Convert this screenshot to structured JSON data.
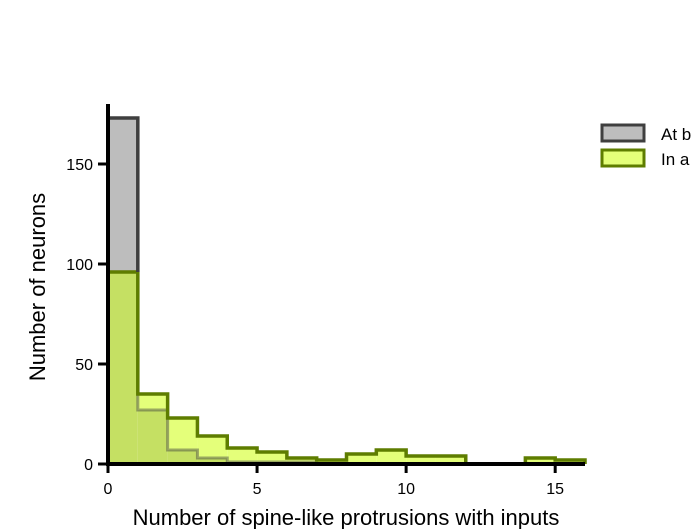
{
  "colors": {
    "series_a_fill": "#bdbdbd",
    "series_a_stroke": "#3f3f3f",
    "series_b_fill": "#e4ff7a",
    "series_b_stroke": "#5e7d00",
    "overlap_fill": "#c5e063",
    "axis": "#000000"
  },
  "chart_data": {
    "type": "histogram",
    "xlabel": "Number of spine-like protrusions with inputs",
    "ylabel": "Number of neurons",
    "xlim": [
      0,
      16
    ],
    "ylim": [
      0,
      180
    ],
    "xticks": [
      0,
      5,
      10,
      15
    ],
    "yticks": [
      0,
      50,
      100,
      150
    ],
    "bin_edges": [
      0,
      1,
      2,
      3,
      4,
      5,
      6,
      7,
      8,
      9,
      10,
      11,
      12,
      13,
      14,
      15,
      16
    ],
    "legend_position": "top-right",
    "series": [
      {
        "name": "At b",
        "values": [
          173,
          27,
          7,
          3,
          1,
          1,
          1,
          0,
          0,
          0,
          0,
          0,
          0,
          0,
          0,
          0
        ]
      },
      {
        "name": "In a",
        "values": [
          96,
          35,
          23,
          14,
          8,
          6,
          3,
          2,
          5,
          7,
          4,
          4,
          0,
          0,
          3,
          2
        ]
      }
    ]
  }
}
